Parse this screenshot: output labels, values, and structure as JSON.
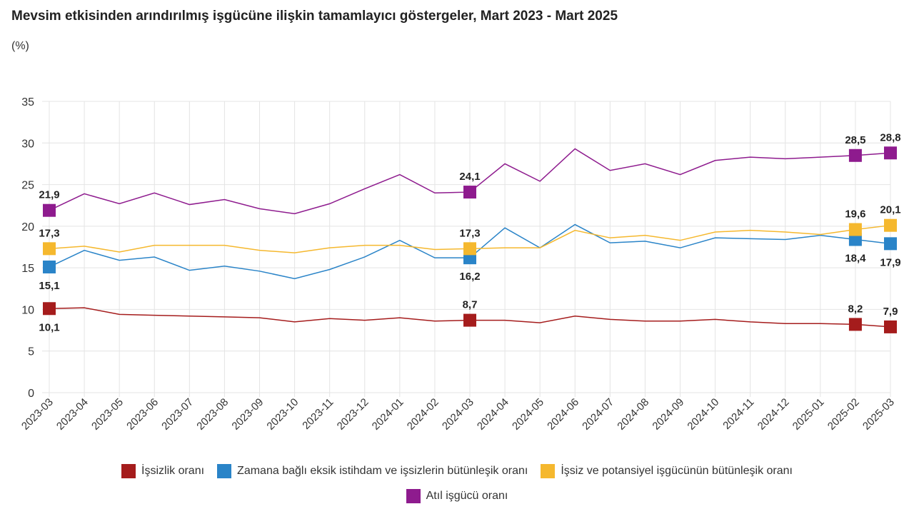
{
  "title": "Mevsim etkisinden arındırılmış işgücüne ilişkin tamamlayıcı göstergeler, Mart 2023 - Mart 2025",
  "unit": "(%)",
  "chart_data": {
    "type": "line",
    "title": "Mevsim etkisinden arındırılmış işgücüne ilişkin tamamlayıcı göstergeler, Mart 2023 - Mart 2025",
    "ylabel": "(%)",
    "ylim": [
      0,
      35
    ],
    "yticks": [
      0,
      5,
      10,
      15,
      20,
      25,
      30,
      35
    ],
    "grid": true,
    "legend_position": "bottom",
    "x": [
      "2023-03",
      "2023-04",
      "2023-05",
      "2023-06",
      "2023-07",
      "2023-08",
      "2023-09",
      "2023-10",
      "2023-11",
      "2023-12",
      "2024-01",
      "2024-02",
      "2024-03",
      "2024-04",
      "2024-05",
      "2024-06",
      "2024-07",
      "2024-08",
      "2024-09",
      "2024-10",
      "2024-11",
      "2024-12",
      "2025-01",
      "2025-02",
      "2025-03"
    ],
    "labeled_indices": [
      0,
      12,
      23,
      24
    ],
    "series": [
      {
        "name": "İşsizlik oranı",
        "color": "#a51c1c",
        "label_pos": "above",
        "values": [
          10.1,
          10.2,
          9.4,
          9.3,
          9.2,
          9.1,
          9.0,
          8.5,
          8.9,
          8.7,
          9.0,
          8.6,
          8.7,
          8.7,
          8.4,
          9.2,
          8.8,
          8.6,
          8.6,
          8.8,
          8.5,
          8.3,
          8.3,
          8.2,
          7.9
        ],
        "labels": [
          "10,1",
          "8,7",
          "8,2",
          "7,9"
        ]
      },
      {
        "name": "Zamana bağlı eksik istihdam ve işsizlerin bütünleşik oranı",
        "color": "#2a84c8",
        "label_pos": "below",
        "values": [
          15.1,
          17.1,
          15.9,
          16.3,
          14.7,
          15.2,
          14.6,
          13.7,
          14.8,
          16.3,
          18.3,
          16.2,
          16.2,
          19.8,
          17.4,
          20.2,
          18.0,
          18.2,
          17.4,
          18.6,
          18.5,
          18.4,
          18.9,
          18.4,
          17.9
        ],
        "labels": [
          "15,1",
          "16,2",
          "18,4",
          "17,9"
        ]
      },
      {
        "name": "İşsiz ve potansiyel işgücünün bütünleşik oranı",
        "color": "#f5b82e",
        "label_pos": "above",
        "values": [
          17.3,
          17.6,
          16.9,
          17.7,
          17.7,
          17.7,
          17.1,
          16.8,
          17.4,
          17.7,
          17.7,
          17.2,
          17.3,
          17.4,
          17.4,
          19.5,
          18.6,
          18.9,
          18.3,
          19.3,
          19.5,
          19.3,
          19.0,
          19.6,
          20.1
        ],
        "labels": [
          "17,3",
          "17,3",
          "19,6",
          "20,1"
        ]
      },
      {
        "name": "Atıl işgücü oranı",
        "color": "#8e1b8e",
        "label_pos": "above",
        "values": [
          21.9,
          23.9,
          22.7,
          24.0,
          22.6,
          23.2,
          22.1,
          21.5,
          22.7,
          24.5,
          26.2,
          24.0,
          24.1,
          27.5,
          25.4,
          29.3,
          26.7,
          27.5,
          26.2,
          27.9,
          28.3,
          28.1,
          28.3,
          28.5,
          28.8
        ],
        "labels": [
          "21,9",
          "24,1",
          "28,5",
          "28,8"
        ]
      }
    ]
  }
}
